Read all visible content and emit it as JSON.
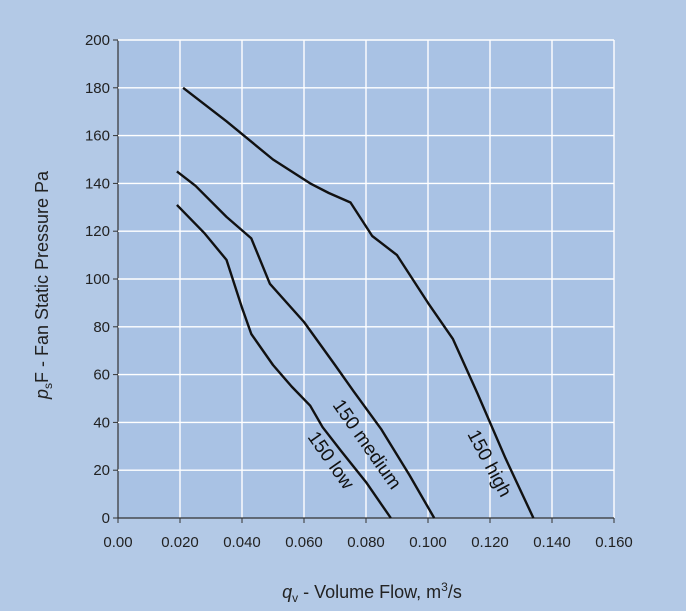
{
  "chart_data": {
    "type": "line",
    "xlabel_parts": {
      "var": "q",
      "sub": "v",
      "rest": " - Volume Flow, m",
      "sup": "3",
      "tail": "/s"
    },
    "ylabel_parts": {
      "var": "p",
      "sub": "s",
      "rest": "F - Fan Static Pressure  Pa"
    },
    "xlim": [
      0,
      0.16
    ],
    "ylim": [
      0,
      200
    ],
    "x_ticks": [
      "0.00",
      "0.020",
      "0.040",
      "0.060",
      "0.080",
      "0.100",
      "0.120",
      "0.140",
      "0.160"
    ],
    "y_ticks": [
      "0",
      "20",
      "40",
      "60",
      "80",
      "100",
      "120",
      "140",
      "160",
      "180",
      "200"
    ],
    "grid": true,
    "series": [
      {
        "name": "150 high",
        "color": "#111111",
        "x": [
          0.021,
          0.035,
          0.05,
          0.062,
          0.068,
          0.075,
          0.082,
          0.09,
          0.1,
          0.108,
          0.116,
          0.125,
          0.134
        ],
        "y": [
          180,
          166,
          150,
          140,
          136,
          132,
          118,
          110,
          90,
          75,
          52,
          25,
          0
        ]
      },
      {
        "name": "150 medium",
        "color": "#111111",
        "x": [
          0.019,
          0.025,
          0.035,
          0.043,
          0.049,
          0.06,
          0.07,
          0.076,
          0.085,
          0.094,
          0.102
        ],
        "y": [
          145,
          139,
          126,
          117,
          98,
          82,
          64,
          53,
          37,
          18,
          0
        ]
      },
      {
        "name": "150 low",
        "color": "#111111",
        "x": [
          0.019,
          0.028,
          0.035,
          0.04,
          0.043,
          0.05,
          0.056,
          0.062,
          0.066,
          0.072,
          0.08,
          0.088
        ],
        "y": [
          131,
          119,
          108,
          88,
          77,
          64,
          55,
          47,
          38,
          28,
          15,
          0
        ]
      }
    ],
    "labels": [
      "150 high",
      "150 medium",
      "150 low"
    ]
  }
}
